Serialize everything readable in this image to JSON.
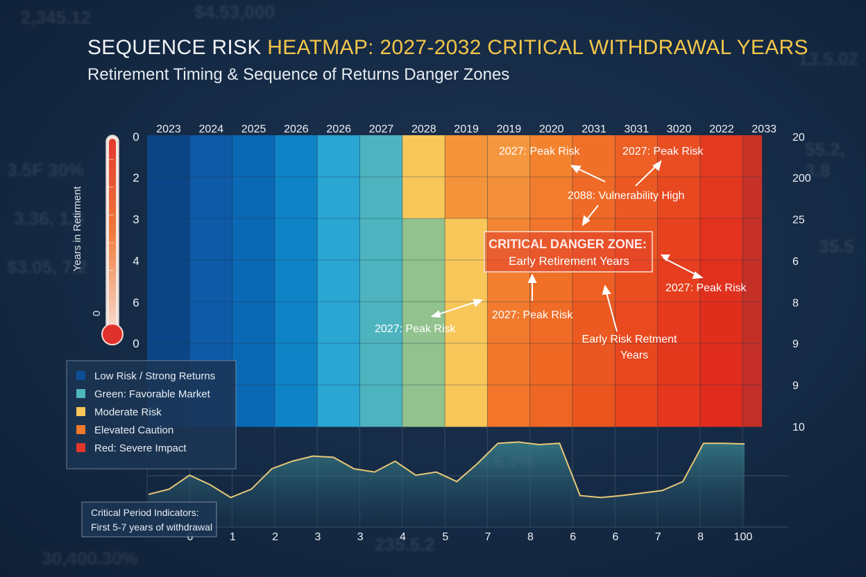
{
  "title_part1": "SEQUENCE RISK ",
  "title_part2": "HEATMAP: 2027-2032 CRITICAL WITHDRAWAL YEARS",
  "subtitle": "Retirement Timing & Sequence of Returns Danger Zones",
  "colors": {
    "title_gold": "#f3c64a",
    "low_risk": "#0d4f96",
    "favorable": "#4db5bd",
    "moderate": "#f8c75a",
    "elevated": "#f07a2a",
    "severe": "#e3352b",
    "danger_box_border": "#f3e2d8",
    "danger_title": "#ffeaea"
  },
  "chart_data": {
    "type": "heatmap",
    "x_top_labels": [
      "2023",
      "2024",
      "2025",
      "2026",
      "2026",
      "2027",
      "2028",
      "2019",
      "2019",
      "2020",
      "2031",
      "3031",
      "3020",
      "2022",
      "2033"
    ],
    "y_left_labels": [
      "0",
      "2",
      "3",
      "4",
      "6",
      "0"
    ],
    "y_right_labels": [
      "20",
      "200",
      "25",
      "6",
      "8",
      "9",
      "9",
      "10"
    ],
    "x_bottom_labels": [
      "0",
      "1",
      "2",
      "3",
      "3",
      "4",
      "5",
      "7",
      "8",
      "6",
      "6",
      "7",
      "8",
      "100"
    ],
    "y_axis_label": "Years in Retirment",
    "thermometer_label": "0",
    "column_colors": [
      [
        "#0c4585",
        "#0c4585",
        "#0c4585",
        "#0c4585",
        "#0c4585",
        "#0c4585",
        "#0c4585"
      ],
      [
        "#0e5aa6",
        "#0e5aa6",
        "#0e5aa6",
        "#0e5aa6",
        "#0e5aa6",
        "#0e5aa6",
        "#0e5aa6"
      ],
      [
        "#0b68b4",
        "#0b68b4",
        "#0b68b4",
        "#0b68b4",
        "#0b68b4",
        "#0b68b4",
        "#0b68b4"
      ],
      [
        "#0e84c6",
        "#0e84c6",
        "#0e84c6",
        "#0e84c6",
        "#0e84c6",
        "#0e84c6",
        "#0e84c6"
      ],
      [
        "#2aa6d3",
        "#2aa6d3",
        "#2aa6d3",
        "#2aa6d3",
        "#2aa6d3",
        "#2aa6d3",
        "#2aa6d3"
      ],
      [
        "#4db4bf",
        "#4db4bf",
        "#4db4bf",
        "#4db4bf",
        "#4db4bf",
        "#4db4bf",
        "#4db4bf"
      ],
      [
        "#f8c75a",
        "#f8c75a",
        "#92c28e",
        "#92c28e",
        "#92c28e",
        "#92c28e",
        "#92c28e"
      ],
      [
        "#f4943a",
        "#f4943a",
        "#f8c75a",
        "#f8c75a",
        "#f8c75a",
        "#f8c75a",
        "#f8c75a"
      ],
      [
        "#f5973e",
        "#f4903a",
        "#f48535",
        "#f37f30",
        "#f27a2d",
        "#f2772b",
        "#f2752a"
      ],
      [
        "#f3822f",
        "#f27c2d",
        "#f1752a",
        "#f07028",
        "#ef6b26",
        "#ee6824",
        "#ee6623"
      ],
      [
        "#f0702a",
        "#ef6a27",
        "#ee6424",
        "#ed5f23",
        "#ec5a21",
        "#eb5720",
        "#eb561f"
      ],
      [
        "#ed5f25",
        "#ec5923",
        "#eb5321",
        "#ea4e20",
        "#e9491f",
        "#e8461e",
        "#e8451e"
      ],
      [
        "#e94d22",
        "#e84820",
        "#e7421f",
        "#e63e1e",
        "#e53a1d",
        "#e4381d",
        "#e4371d"
      ],
      [
        "#e43a20",
        "#e3361f",
        "#e2331e",
        "#e1301e",
        "#e02e1d",
        "#e02d1d",
        "#e02c1d"
      ],
      [
        "#c83328",
        "#c63228",
        "#c53128",
        "#c43028",
        "#c33028",
        "#c32f28",
        "#c22f28"
      ]
    ],
    "trend_line_y": [
      0.1,
      0.18,
      0.4,
      0.25,
      0.05,
      0.18,
      0.5,
      0.62,
      0.7,
      0.68,
      0.5,
      0.45,
      0.62,
      0.4,
      0.45,
      0.3,
      0.58,
      0.9,
      0.92,
      0.88,
      0.9,
      0.08,
      0.05,
      0.08,
      0.12,
      0.16,
      0.3,
      0.9,
      0.9,
      0.89
    ],
    "legend": [
      {
        "label": "Low Risk / Strong Returns",
        "color": "#0d4f96"
      },
      {
        "label": "Green: Favorable Market",
        "color": "#4db5bd"
      },
      {
        "label": "Moderate Risk",
        "color": "#f8c75a"
      },
      {
        "label": "Elevated Caution",
        "color": "#f07a2a"
      },
      {
        "label": "Red: Severe Impact",
        "color": "#e3352b"
      }
    ],
    "annotations": {
      "peak_risk_1": "2027: Peak Risk",
      "peak_risk_2": "2027: Peak Risk",
      "vulnerability": "2088: Vulnerability High",
      "danger_title": "CRITICAL DANGER ZONE:",
      "danger_subtitle": "Early Retirement Years",
      "peak_risk_3": "2027: Peak Risk",
      "peak_risk_4": "2027: Peak Risk",
      "peak_risk_5": "2027: Peak Risk",
      "early_risk_line1": "Early Risk Retment",
      "early_risk_line2": "Years"
    },
    "critical_box_line1": "Critical Period Indicators:",
    "critical_box_line2": "First 5-7 years of withdrawal"
  }
}
